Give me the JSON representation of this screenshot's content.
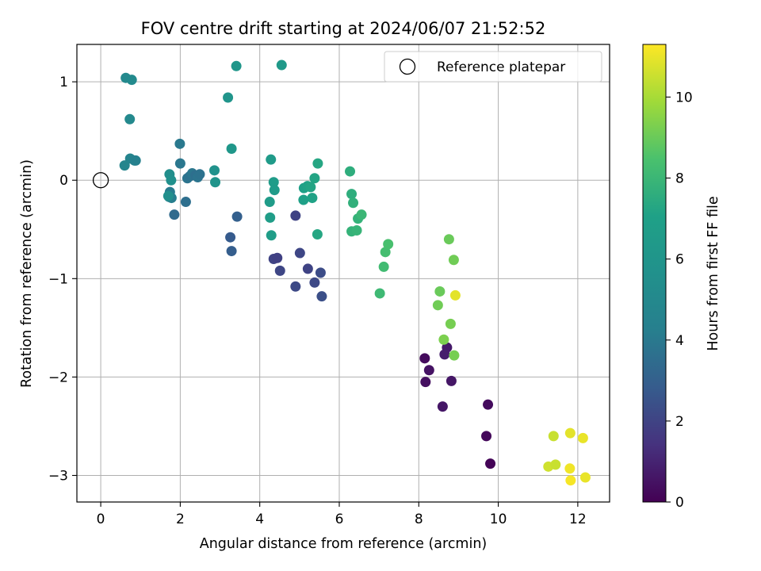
{
  "chart_data": {
    "type": "scatter",
    "title": "FOV centre drift starting at 2024/06/07 21:52:52",
    "xlabel": "Angular distance from reference (arcmin)",
    "ylabel": "Rotation from reference (arcmin)",
    "xlim": [
      -0.6,
      12.8
    ],
    "ylim": [
      -3.27,
      1.38
    ],
    "xticks": [
      0,
      2,
      4,
      6,
      8,
      10,
      12
    ],
    "yticks": [
      1,
      0,
      -1,
      -2,
      -3
    ],
    "ytick_labels": [
      "1",
      "0",
      "−1",
      "−2",
      "−3"
    ],
    "grid": true,
    "legend": {
      "position": "top-right",
      "entries": [
        "Reference platepar"
      ]
    },
    "reference_point": {
      "name": "Reference platepar",
      "x": 0,
      "y": 0,
      "marker": "open-circle"
    },
    "colorbar": {
      "label": "Hours from first FF file",
      "min": 0,
      "max": 11.3,
      "ticks": [
        0,
        2,
        4,
        6,
        8,
        10
      ],
      "colormap": "viridis"
    },
    "points": [
      {
        "x": 8.15,
        "y": -1.81,
        "c": 0.3
      },
      {
        "x": 8.26,
        "y": -1.93,
        "c": 0.5
      },
      {
        "x": 8.17,
        "y": -2.05,
        "c": 0.4
      },
      {
        "x": 8.6,
        "y": -2.3,
        "c": 0.6
      },
      {
        "x": 8.71,
        "y": -1.7,
        "c": 0.7
      },
      {
        "x": 8.65,
        "y": -1.77,
        "c": 0.8
      },
      {
        "x": 8.82,
        "y": -2.04,
        "c": 0.6
      },
      {
        "x": 9.74,
        "y": -2.28,
        "c": 0.3
      },
      {
        "x": 9.7,
        "y": -2.6,
        "c": 0.2
      },
      {
        "x": 9.8,
        "y": -2.88,
        "c": 0.1
      },
      {
        "x": 4.9,
        "y": -0.36,
        "c": 2.0
      },
      {
        "x": 5.01,
        "y": -0.74,
        "c": 2.1
      },
      {
        "x": 4.35,
        "y": -0.8,
        "c": 2.0
      },
      {
        "x": 4.44,
        "y": -0.79,
        "c": 1.9
      },
      {
        "x": 4.51,
        "y": -0.92,
        "c": 2.1
      },
      {
        "x": 5.21,
        "y": -0.9,
        "c": 2.0
      },
      {
        "x": 5.38,
        "y": -1.04,
        "c": 2.2
      },
      {
        "x": 5.53,
        "y": -0.94,
        "c": 2.3
      },
      {
        "x": 4.9,
        "y": -1.08,
        "c": 2.2
      },
      {
        "x": 5.56,
        "y": -1.18,
        "c": 2.4
      },
      {
        "x": 3.26,
        "y": -0.58,
        "c": 2.8
      },
      {
        "x": 3.29,
        "y": -0.72,
        "c": 2.9
      },
      {
        "x": 3.43,
        "y": -0.37,
        "c": 3.0
      },
      {
        "x": 1.85,
        "y": -0.35,
        "c": 3.4
      },
      {
        "x": 2.14,
        "y": -0.22,
        "c": 3.6
      },
      {
        "x": 2.18,
        "y": 0.02,
        "c": 3.8
      },
      {
        "x": 2.24,
        "y": 0.04,
        "c": 3.7
      },
      {
        "x": 2.3,
        "y": 0.07,
        "c": 3.9
      },
      {
        "x": 2.38,
        "y": 0.05,
        "c": 3.6
      },
      {
        "x": 2.44,
        "y": 0.03,
        "c": 3.8
      },
      {
        "x": 2.49,
        "y": 0.06,
        "c": 3.7
      },
      {
        "x": 2.0,
        "y": 0.17,
        "c": 3.9
      },
      {
        "x": 1.99,
        "y": 0.37,
        "c": 4.0
      },
      {
        "x": 1.74,
        "y": -0.12,
        "c": 4.1
      },
      {
        "x": 1.72,
        "y": -0.17,
        "c": 4.3
      },
      {
        "x": 1.78,
        "y": -0.18,
        "c": 4.2
      },
      {
        "x": 0.74,
        "y": 0.22,
        "c": 4.6
      },
      {
        "x": 0.85,
        "y": 0.2,
        "c": 4.5
      },
      {
        "x": 0.88,
        "y": 0.2,
        "c": 4.4
      },
      {
        "x": 0.6,
        "y": 0.15,
        "c": 4.7
      },
      {
        "x": 0.63,
        "y": 1.04,
        "c": 5.0
      },
      {
        "x": 0.78,
        "y": 1.02,
        "c": 5.1
      },
      {
        "x": 0.73,
        "y": 0.62,
        "c": 5.0
      },
      {
        "x": 1.73,
        "y": 0.06,
        "c": 5.4
      },
      {
        "x": 1.77,
        "y": 0.0,
        "c": 5.6
      },
      {
        "x": 1.7,
        "y": -0.16,
        "c": 5.5
      },
      {
        "x": 2.86,
        "y": 0.1,
        "c": 5.7
      },
      {
        "x": 2.88,
        "y": -0.02,
        "c": 5.9
      },
      {
        "x": 3.2,
        "y": 0.84,
        "c": 6.0
      },
      {
        "x": 3.41,
        "y": 1.16,
        "c": 6.1
      },
      {
        "x": 3.29,
        "y": 0.32,
        "c": 6.2
      },
      {
        "x": 4.55,
        "y": 1.17,
        "c": 6.4
      },
      {
        "x": 4.28,
        "y": 0.21,
        "c": 6.5
      },
      {
        "x": 4.25,
        "y": -0.22,
        "c": 6.6
      },
      {
        "x": 4.35,
        "y": -0.02,
        "c": 6.6
      },
      {
        "x": 4.37,
        "y": -0.1,
        "c": 6.5
      },
      {
        "x": 4.26,
        "y": -0.38,
        "c": 6.7
      },
      {
        "x": 4.29,
        "y": -0.56,
        "c": 6.7
      },
      {
        "x": 5.11,
        "y": -0.08,
        "c": 7.0
      },
      {
        "x": 5.1,
        "y": -0.2,
        "c": 7.0
      },
      {
        "x": 5.2,
        "y": -0.06,
        "c": 7.1
      },
      {
        "x": 5.28,
        "y": -0.07,
        "c": 7.2
      },
      {
        "x": 5.32,
        "y": -0.18,
        "c": 7.1
      },
      {
        "x": 5.38,
        "y": 0.02,
        "c": 7.2
      },
      {
        "x": 5.46,
        "y": 0.17,
        "c": 7.3
      },
      {
        "x": 5.45,
        "y": -0.55,
        "c": 7.3
      },
      {
        "x": 6.27,
        "y": 0.09,
        "c": 7.6
      },
      {
        "x": 6.31,
        "y": -0.14,
        "c": 7.6
      },
      {
        "x": 6.35,
        "y": -0.23,
        "c": 7.7
      },
      {
        "x": 6.31,
        "y": -0.52,
        "c": 7.8
      },
      {
        "x": 6.44,
        "y": -0.51,
        "c": 7.9
      },
      {
        "x": 6.47,
        "y": -0.39,
        "c": 7.8
      },
      {
        "x": 6.56,
        "y": -0.35,
        "c": 8.0
      },
      {
        "x": 7.02,
        "y": -1.15,
        "c": 8.1
      },
      {
        "x": 7.12,
        "y": -0.88,
        "c": 8.2
      },
      {
        "x": 7.16,
        "y": -0.73,
        "c": 8.3
      },
      {
        "x": 7.23,
        "y": -0.65,
        "c": 8.4
      },
      {
        "x": 8.76,
        "y": -0.6,
        "c": 9.0
      },
      {
        "x": 8.88,
        "y": -0.81,
        "c": 9.1
      },
      {
        "x": 8.53,
        "y": -1.13,
        "c": 9.0
      },
      {
        "x": 8.48,
        "y": -1.27,
        "c": 9.1
      },
      {
        "x": 8.8,
        "y": -1.46,
        "c": 9.2
      },
      {
        "x": 8.63,
        "y": -1.62,
        "c": 9.3
      },
      {
        "x": 8.89,
        "y": -1.78,
        "c": 9.2
      },
      {
        "x": 8.92,
        "y": -1.17,
        "c": 10.9
      },
      {
        "x": 11.39,
        "y": -2.6,
        "c": 10.5
      },
      {
        "x": 11.26,
        "y": -2.91,
        "c": 10.6
      },
      {
        "x": 11.44,
        "y": -2.89,
        "c": 10.5
      },
      {
        "x": 11.81,
        "y": -2.57,
        "c": 10.9
      },
      {
        "x": 12.13,
        "y": -2.62,
        "c": 11.0
      },
      {
        "x": 11.8,
        "y": -2.93,
        "c": 11.1
      },
      {
        "x": 11.82,
        "y": -3.05,
        "c": 11.2
      },
      {
        "x": 12.19,
        "y": -3.02,
        "c": 11.0
      }
    ]
  }
}
